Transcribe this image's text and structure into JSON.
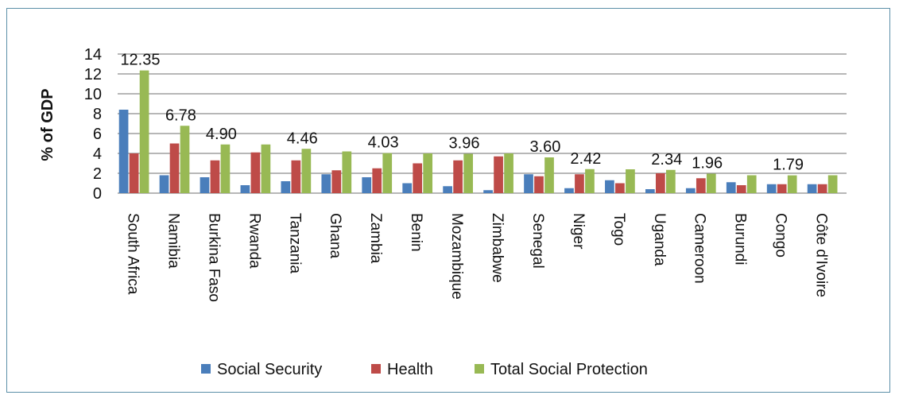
{
  "chart_data": {
    "type": "bar",
    "title": "",
    "xlabel": "",
    "ylabel": "% of GDP",
    "ylim": [
      0,
      14
    ],
    "yticks": [
      0,
      2,
      4,
      6,
      8,
      10,
      12,
      14
    ],
    "grid": true,
    "legend_position": "bottom",
    "categories": [
      "South Africa",
      "Namibia",
      "Burkina Faso",
      "Rwanda",
      "Tanzania",
      "Ghana",
      "Zambia",
      "Benin",
      "Mozambique",
      "Zimbabwe",
      "Senegal",
      "Niger",
      "Togo",
      "Uganda",
      "Cameroon",
      "Burundi",
      "Congo",
      "Côte d'Ivoire"
    ],
    "series": [
      {
        "name": "Social Security",
        "color": "#4a7ebb",
        "values": [
          8.4,
          1.8,
          1.6,
          0.8,
          1.2,
          1.9,
          1.6,
          1.0,
          0.7,
          0.3,
          1.9,
          0.5,
          1.3,
          0.4,
          0.5,
          1.1,
          0.9,
          0.9
        ]
      },
      {
        "name": "Health",
        "color": "#be4b48",
        "values": [
          4.0,
          5.0,
          3.3,
          4.1,
          3.3,
          2.3,
          2.5,
          3.0,
          3.3,
          3.7,
          1.7,
          1.9,
          1.0,
          2.0,
          1.5,
          0.8,
          0.9,
          0.9
        ]
      },
      {
        "name": "Total Social Protection",
        "color": "#98b954",
        "values": [
          12.35,
          6.78,
          4.9,
          4.9,
          4.46,
          4.2,
          4.03,
          4.0,
          3.96,
          4.0,
          3.6,
          2.42,
          2.4,
          2.34,
          1.96,
          1.8,
          1.79,
          1.8
        ]
      }
    ],
    "data_labels": [
      {
        "category": "South Africa",
        "text": "12.35"
      },
      {
        "category": "Namibia",
        "text": "6.78"
      },
      {
        "category": "Burkina Faso",
        "text": "4.90"
      },
      {
        "category": "Tanzania",
        "text": "4.46"
      },
      {
        "category": "Zambia",
        "text": "4.03"
      },
      {
        "category": "Mozambique",
        "text": "3.96"
      },
      {
        "category": "Senegal",
        "text": "3.60"
      },
      {
        "category": "Niger",
        "text": "2.42"
      },
      {
        "category": "Uganda",
        "text": "2.34"
      },
      {
        "category": "Cameroon",
        "text": "1.96"
      },
      {
        "category": "Congo",
        "text": "1.79"
      }
    ]
  }
}
